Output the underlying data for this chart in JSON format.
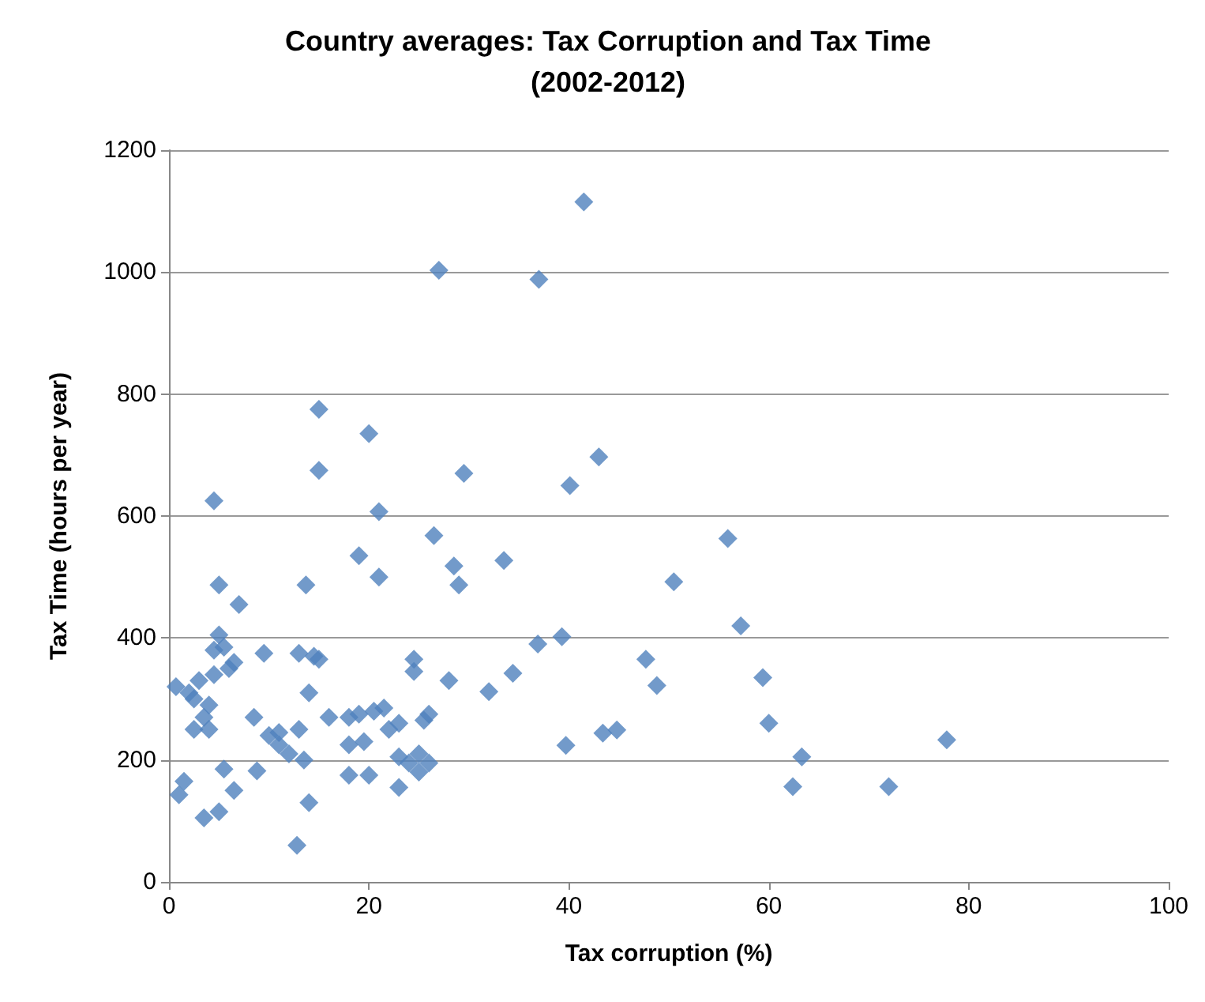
{
  "chart_data": {
    "type": "scatter",
    "title": "Country averages: Tax Corruption and Tax Time\n(2002-2012)",
    "xlabel": "Tax corruption (%)",
    "ylabel": "Tax Time (hours per year)",
    "xlim": [
      0,
      100
    ],
    "xticks": [
      0,
      20,
      40,
      60,
      80,
      100
    ],
    "ylim": [
      0,
      1200
    ],
    "yticks": [
      0,
      200,
      400,
      600,
      800,
      1000,
      1200
    ],
    "grid": "y",
    "marker": "diamond",
    "series": [
      {
        "color": "#4f81bd",
        "x": [
          0.7,
          1,
          1.5,
          2,
          2.5,
          2.5,
          3,
          3.5,
          3.5,
          4,
          4,
          4.5,
          4.5,
          4.5,
          5,
          5,
          5,
          5.5,
          5.5,
          6,
          6.5,
          6.5,
          7,
          8.5,
          8.8,
          9.5,
          10,
          11,
          11,
          12,
          12.8,
          13,
          13,
          13.5,
          13.7,
          14,
          14,
          14.5,
          15,
          15,
          15,
          16,
          18,
          18,
          18,
          19,
          19,
          19.5,
          20,
          20,
          20.5,
          21,
          21,
          21.5,
          22,
          23,
          23,
          23,
          24,
          24.5,
          24.5,
          25,
          25,
          25.5,
          26,
          26,
          26.5,
          27,
          28,
          28.5,
          29,
          29.5,
          32,
          33.5,
          34.4,
          36.9,
          37,
          39.3,
          39.7,
          40.1,
          41.5,
          43,
          43.4,
          44.8,
          47.7,
          48.8,
          50.5,
          55.9,
          57.2,
          59.4,
          60,
          62.4,
          63.3,
          72,
          77.8
        ],
        "values": [
          320,
          143,
          165,
          310,
          300,
          250,
          330,
          270,
          105,
          290,
          250,
          625,
          380,
          340,
          487,
          405,
          115,
          385,
          185,
          350,
          360,
          150,
          455,
          270,
          182,
          375,
          240,
          245,
          225,
          210,
          60,
          250,
          375,
          200,
          487,
          310,
          130,
          370,
          775,
          675,
          365,
          270,
          270,
          225,
          175,
          535,
          275,
          230,
          735,
          175,
          280,
          607,
          500,
          285,
          250,
          205,
          260,
          155,
          195,
          365,
          345,
          180,
          210,
          265,
          275,
          195,
          568,
          1003,
          330,
          518,
          487,
          670,
          312,
          527,
          342,
          390,
          988,
          402,
          224,
          650,
          1115,
          697,
          244,
          249,
          365,
          322,
          492,
          563,
          420,
          335,
          260,
          156,
          205,
          156,
          233
        ]
      }
    ]
  }
}
